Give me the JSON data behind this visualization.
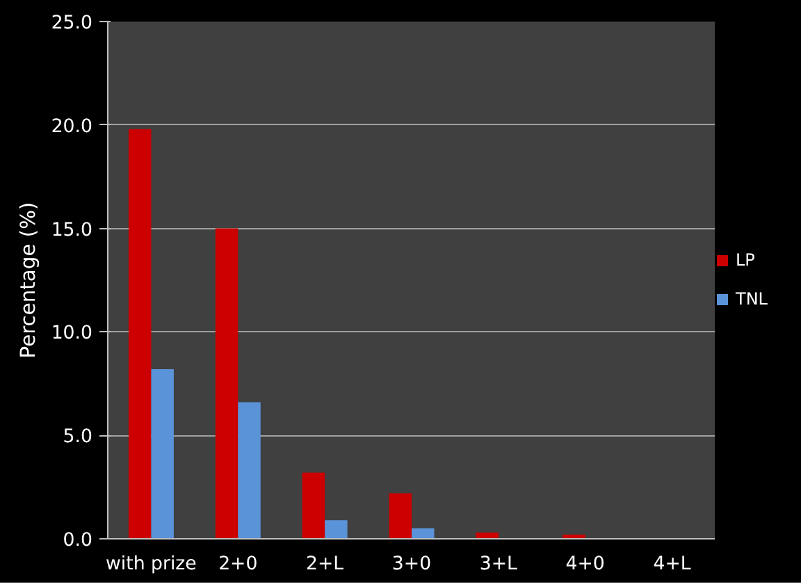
{
  "chart_data": {
    "type": "bar",
    "ylabel": "Percentage (%)",
    "categories": [
      "with prize",
      "2+0",
      "2+L",
      "3+0",
      "3+L",
      "4+0",
      "4+L"
    ],
    "series": [
      {
        "name": "LP",
        "color": "#cc0000",
        "values": [
          19.8,
          15.0,
          3.2,
          2.2,
          0.3,
          0.2,
          0
        ]
      },
      {
        "name": "TNL",
        "color": "#5b93d9",
        "values": [
          8.2,
          6.6,
          0.9,
          0.5,
          0,
          0,
          0
        ]
      }
    ],
    "ylim": [
      0,
      25
    ],
    "yticks": [
      {
        "value": 0,
        "label": "0.0"
      },
      {
        "value": 5,
        "label": "5.0"
      },
      {
        "value": 10,
        "label": "10.0"
      },
      {
        "value": 15,
        "label": "15.0"
      },
      {
        "value": 20,
        "label": "20.0"
      },
      {
        "value": 25,
        "label": "25.0"
      }
    ],
    "grid": "y",
    "legend": "right"
  }
}
